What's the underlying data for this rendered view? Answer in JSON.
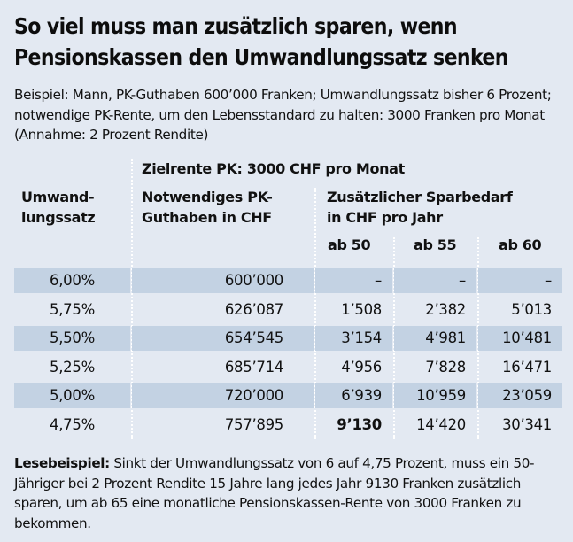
{
  "title": "So viel muss man zusätzlich sparen, wenn Pensionskassen den Umwandlungssatz senken",
  "intro": "Beispiel: Mann, PK-Guthaben 600’000 Franken; Umwandlungssatz bisher 6 Prozent; notwendige PK-Rente, um den Lebensstandard zu halten: 3000 Franken pro Monat (Annahme: 2 Prozent Rendite)",
  "header": {
    "group": "Zielrente PK: 3000 CHF pro Monat",
    "col_rate": "Umwand-lungssatz",
    "col_rate_line1": "Umwand-",
    "col_rate_line2": "lungssatz",
    "col_capital_line1": "Notwendiges PK-",
    "col_capital_line2": "Guthaben in CHF",
    "col_savings_line1": "Zusätzlicher Sparbedarf",
    "col_savings_line2": "in CHF pro Jahr",
    "sub_cols": [
      "ab 50",
      "ab 55",
      "ab 60"
    ]
  },
  "rows": [
    {
      "rate": "6,00%",
      "capital": "600’000",
      "ab50": "–",
      "ab55": "–",
      "ab60": "–"
    },
    {
      "rate": "5,75%",
      "capital": "626’087",
      "ab50": "1’508",
      "ab55": "2’382",
      "ab60": "5’013"
    },
    {
      "rate": "5,50%",
      "capital": "654’545",
      "ab50": "3’154",
      "ab55": "4’981",
      "ab60": "10’481"
    },
    {
      "rate": "5,25%",
      "capital": "685’714",
      "ab50": "4’956",
      "ab55": "7’828",
      "ab60": "16’471"
    },
    {
      "rate": "5,00%",
      "capital": "720’000",
      "ab50": "6’939",
      "ab55": "10’959",
      "ab60": "23’059"
    },
    {
      "rate": "4,75%",
      "capital": "757’895",
      "ab50": "9’130",
      "ab55": "14’420",
      "ab60": "30’341"
    }
  ],
  "highlight": {
    "row": 5,
    "column": "ab50"
  },
  "footer": {
    "label": "Lesebeispiel:",
    "text": " Sinkt der Umwandlungssatz von 6 auf 4,75 Prozent, muss ein 50-Jähriger bei 2 Prozent Rendite 15 Jahre lang jedes Jahr 9130 Franken zusätzlich sparen, um ab 65 eine monatliche Pensionskassen-Rente von 3000 Franken zu bekommen."
  },
  "colors": {
    "background": "#e3e9f2",
    "stripe": "#c3d2e3",
    "separator": "#ffffff",
    "text": "#111111"
  },
  "chart_data": {
    "type": "table",
    "title": "So viel muss man zusätzlich sparen, wenn Pensionskassen den Umwandlungssatz senken",
    "subtitle": "Zielrente PK: 3000 CHF pro Monat",
    "columns": [
      "Umwandlungssatz",
      "Notwendiges PK-Guthaben in CHF",
      "Zusätzlicher Sparbedarf in CHF pro Jahr ab 50",
      "ab 55",
      "ab 60"
    ],
    "rows": [
      [
        6.0,
        600000,
        null,
        null,
        null
      ],
      [
        5.75,
        626087,
        1508,
        2382,
        5013
      ],
      [
        5.5,
        654545,
        3154,
        4981,
        10481
      ],
      [
        5.25,
        685714,
        4956,
        7828,
        16471
      ],
      [
        5.0,
        720000,
        6939,
        10959,
        23059
      ],
      [
        4.75,
        757895,
        9130,
        14420,
        30341
      ]
    ],
    "units": {
      "rate": "%",
      "capital": "CHF",
      "savings": "CHF pro Jahr"
    }
  }
}
